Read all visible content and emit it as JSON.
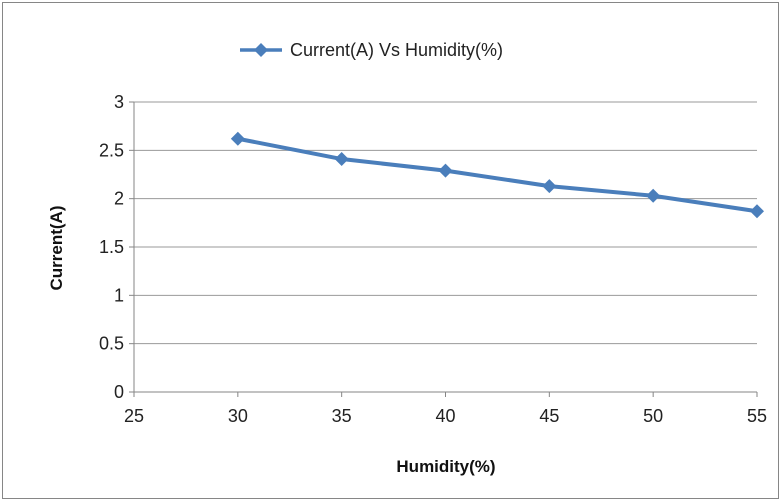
{
  "chart_data": {
    "type": "line",
    "title": "",
    "xlabel": "Humidity(%)",
    "ylabel": "Current(A)",
    "xlim": [
      25,
      55
    ],
    "ylim": [
      0,
      3
    ],
    "x_ticks": [
      "25",
      "30",
      "35",
      "40",
      "45",
      "50",
      "55"
    ],
    "y_ticks": [
      "0",
      "0.5",
      "1",
      "1.5",
      "2",
      "2.5",
      "3"
    ],
    "grid": true,
    "legend_position": "top-center",
    "series": [
      {
        "name": "Current(A) Vs Humidity(%)",
        "color": "#4a7ebb",
        "marker": "diamond",
        "x": [
          30,
          35,
          40,
          45,
          50,
          55
        ],
        "y": [
          2.62,
          2.41,
          2.29,
          2.13,
          2.03,
          1.87
        ]
      }
    ]
  }
}
